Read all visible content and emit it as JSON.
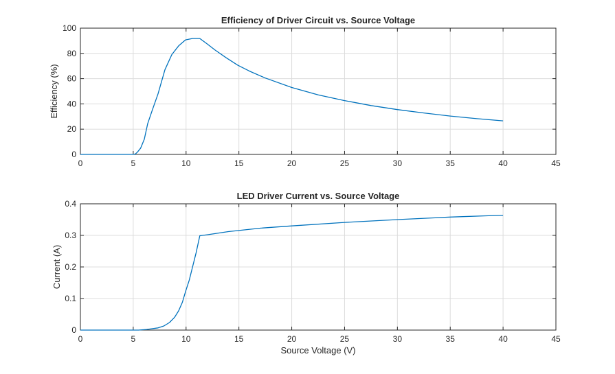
{
  "chart_data": [
    {
      "type": "line",
      "title": "Efficiency of Driver Circuit vs. Source Voltage",
      "xlabel": "",
      "ylabel": "Efficiency (%)",
      "xlim": [
        0,
        45
      ],
      "ylim": [
        0,
        100
      ],
      "xticks": [
        0,
        5,
        10,
        15,
        20,
        25,
        30,
        35,
        40,
        45
      ],
      "yticks": [
        0,
        20,
        40,
        60,
        80,
        100
      ],
      "grid": true,
      "color": "#0072BD",
      "x": [
        0,
        5.0,
        5.2,
        5.4,
        5.7,
        6.05,
        6.37,
        6.8,
        7.35,
        8.0,
        8.65,
        9.3,
        9.95,
        10.6,
        11.3,
        12.0,
        12.75,
        13.8,
        14.9,
        16,
        17.5,
        20,
        22.5,
        25,
        27.5,
        30,
        32.5,
        35,
        37.5,
        40
      ],
      "y": [
        0,
        0,
        0.3,
        1.8,
        5,
        12,
        24.5,
        35,
        48,
        67,
        79,
        86,
        90.7,
        91.8,
        91.8,
        87.5,
        82.6,
        76.5,
        70.6,
        66,
        60.5,
        53,
        47.2,
        42.6,
        38.7,
        35.5,
        32.8,
        30.4,
        28.3,
        26.6
      ]
    },
    {
      "type": "line",
      "title": "LED Driver Current vs. Source Voltage",
      "xlabel": "Source Voltage (V)",
      "ylabel": "Current (A)",
      "xlim": [
        0,
        45
      ],
      "ylim": [
        0,
        0.4
      ],
      "xticks": [
        0,
        5,
        10,
        15,
        20,
        25,
        30,
        35,
        40,
        45
      ],
      "yticks": [
        0,
        0.1,
        0.2,
        0.3,
        0.4
      ],
      "grid": true,
      "color": "#0072BD",
      "x": [
        0,
        5.5,
        6.26,
        7.35,
        7.9,
        8.43,
        8.9,
        9.3,
        9.65,
        9.95,
        10.3,
        10.6,
        10.95,
        11.3,
        12,
        14,
        17.1,
        20,
        25,
        30,
        35,
        40
      ],
      "y": [
        0,
        0,
        0.002,
        0.007,
        0.013,
        0.024,
        0.04,
        0.061,
        0.088,
        0.122,
        0.158,
        0.198,
        0.245,
        0.299,
        0.302,
        0.312,
        0.323,
        0.33,
        0.341,
        0.35,
        0.358,
        0.364
      ]
    }
  ]
}
